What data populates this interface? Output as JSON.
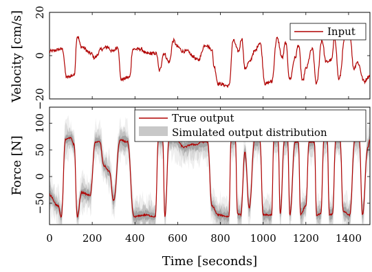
{
  "chart_data": [
    {
      "type": "line",
      "ylabel": "Velocity [cm/s]",
      "xlim": [
        0,
        1500
      ],
      "ylim": [
        -20,
        20
      ],
      "yticks": [
        "−20",
        "0",
        "20"
      ],
      "legend_position": "top-right",
      "colors": {
        "input": "#b00000"
      },
      "series": [
        {
          "name": "Input",
          "segments": [
            [
              0,
              2
            ],
            [
              60,
              3
            ],
            [
              80,
              -10
            ],
            [
              115,
              -9
            ],
            [
              130,
              9
            ],
            [
              150,
              4
            ],
            [
              195,
              1
            ],
            [
              210,
              -1
            ],
            [
              245,
              3
            ],
            [
              270,
              4
            ],
            [
              295,
              2
            ],
            [
              320,
              4
            ],
            [
              335,
              -11
            ],
            [
              375,
              -10
            ],
            [
              390,
              3
            ],
            [
              430,
              3
            ],
            [
              450,
              1
            ],
            [
              500,
              1
            ],
            [
              515,
              -7
            ],
            [
              535,
              1
            ],
            [
              560,
              -3
            ],
            [
              580,
              7
            ],
            [
              600,
              4
            ],
            [
              625,
              2
            ],
            [
              650,
              2
            ],
            [
              665,
              0
            ],
            [
              695,
              -2
            ],
            [
              730,
              5
            ],
            [
              760,
              3
            ],
            [
              770,
              -5
            ],
            [
              790,
              -13
            ],
            [
              840,
              -14
            ],
            [
              860,
              7
            ],
            [
              885,
              2
            ],
            [
              900,
              8
            ],
            [
              915,
              -6
            ],
            [
              935,
              -3
            ],
            [
              960,
              2
            ],
            [
              985,
              6
            ],
            [
              1010,
              -13
            ],
            [
              1040,
              -12
            ],
            [
              1065,
              8
            ],
            [
              1090,
              -1
            ],
            [
              1105,
              6
            ],
            [
              1125,
              -11
            ],
            [
              1150,
              -1
            ],
            [
              1165,
              5
            ],
            [
              1185,
              -12
            ],
            [
              1200,
              -6
            ],
            [
              1230,
              3
            ],
            [
              1250,
              -13
            ],
            [
              1275,
              7
            ],
            [
              1295,
              -3
            ],
            [
              1320,
              -2
            ],
            [
              1335,
              8
            ],
            [
              1355,
              -11
            ],
            [
              1385,
              9
            ],
            [
              1405,
              10
            ],
            [
              1425,
              -6
            ],
            [
              1440,
              -3
            ],
            [
              1475,
              -12
            ],
            [
              1490,
              -10
            ],
            [
              1500,
              -9
            ]
          ]
        }
      ]
    },
    {
      "type": "line",
      "xlabel": "Time [seconds]",
      "ylabel": "Force [N]",
      "xlim": [
        0,
        1500
      ],
      "ylim": [
        -90,
        130
      ],
      "xticks": [
        "0",
        "200",
        "400",
        "600",
        "800",
        "1000",
        "1200",
        "1400"
      ],
      "yticks": [
        "−50",
        "0",
        "50",
        "100"
      ],
      "legend_position": "top-right",
      "colors": {
        "true_output": "#b00000",
        "distribution": "#707070"
      },
      "series": [
        {
          "name": "True output",
          "segments": [
            [
              0,
              -35
            ],
            [
              40,
              -55
            ],
            [
              55,
              -75
            ],
            [
              75,
              70
            ],
            [
              100,
              72
            ],
            [
              115,
              60
            ],
            [
              130,
              -75
            ],
            [
              150,
              -30
            ],
            [
              190,
              -35
            ],
            [
              215,
              65
            ],
            [
              235,
              65
            ],
            [
              255,
              20
            ],
            [
              280,
              10
            ],
            [
              300,
              -45
            ],
            [
              330,
              68
            ],
            [
              365,
              65
            ],
            [
              395,
              -75
            ],
            [
              450,
              -72
            ],
            [
              495,
              -75
            ],
            [
              510,
              70
            ],
            [
              530,
              68
            ],
            [
              540,
              -75
            ],
            [
              560,
              70
            ],
            [
              590,
              70
            ],
            [
              630,
              55
            ],
            [
              665,
              60
            ],
            [
              690,
              60
            ],
            [
              710,
              65
            ],
            [
              740,
              65
            ],
            [
              760,
              -55
            ],
            [
              790,
              -72
            ],
            [
              840,
              -75
            ],
            [
              850,
              70
            ],
            [
              870,
              70
            ],
            [
              880,
              -70
            ],
            [
              895,
              -72
            ],
            [
              915,
              45
            ],
            [
              935,
              -60
            ],
            [
              960,
              68
            ],
            [
              985,
              68
            ],
            [
              1000,
              -72
            ],
            [
              1040,
              -72
            ],
            [
              1050,
              70
            ],
            [
              1070,
              70
            ],
            [
              1080,
              -70
            ],
            [
              1100,
              68
            ],
            [
              1115,
              68
            ],
            [
              1125,
              -72
            ],
            [
              1150,
              65
            ],
            [
              1165,
              65
            ],
            [
              1175,
              -70
            ],
            [
              1200,
              -55
            ],
            [
              1215,
              65
            ],
            [
              1240,
              65
            ],
            [
              1250,
              -72
            ],
            [
              1270,
              -70
            ],
            [
              1285,
              70
            ],
            [
              1300,
              70
            ],
            [
              1310,
              -72
            ],
            [
              1325,
              -70
            ],
            [
              1340,
              70
            ],
            [
              1360,
              70
            ],
            [
              1375,
              -65
            ],
            [
              1405,
              -72
            ],
            [
              1430,
              70
            ],
            [
              1450,
              70
            ],
            [
              1465,
              -72
            ],
            [
              1490,
              55
            ],
            [
              1500,
              68
            ]
          ]
        },
        {
          "name": "Simulated output distribution",
          "band": true
        }
      ]
    }
  ]
}
